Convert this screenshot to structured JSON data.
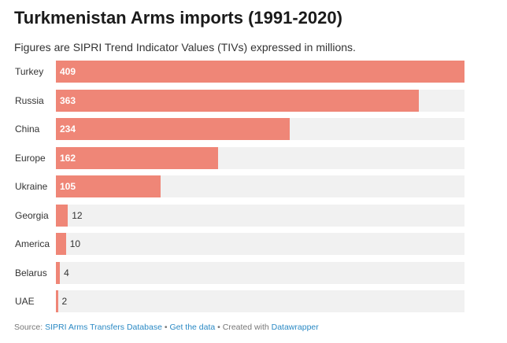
{
  "header": {
    "title": "Turkmenistan Arms imports (1991-2020)",
    "subtitle": "Figures are SIPRI Trend Indicator Values (TIVs) expressed in millions."
  },
  "chart_data": {
    "type": "bar",
    "orientation": "horizontal",
    "title": "Turkmenistan Arms imports (1991-2020)",
    "subtitle": "Figures are SIPRI Trend Indicator Values (TIVs) expressed in millions.",
    "categories": [
      "Turkey",
      "Russia",
      "China",
      "Europe",
      "Ukraine",
      "Georgia",
      "America",
      "Belarus",
      "UAE"
    ],
    "values": [
      409,
      363,
      234,
      162,
      105,
      12,
      10,
      4,
      2
    ],
    "xlim": [
      0,
      409
    ],
    "bar_color": "#ef8677",
    "track_color": "#f1f1f1",
    "grid": false,
    "legend": "none"
  },
  "footer": {
    "source_prefix": "Source: ",
    "source_link": "SIPRI Arms Transfers Database",
    "separator": " • ",
    "data_link": "Get the data",
    "created_prefix": "Created with ",
    "created_link": "Datawrapper"
  },
  "colors": {
    "link": "#2a89c4"
  }
}
